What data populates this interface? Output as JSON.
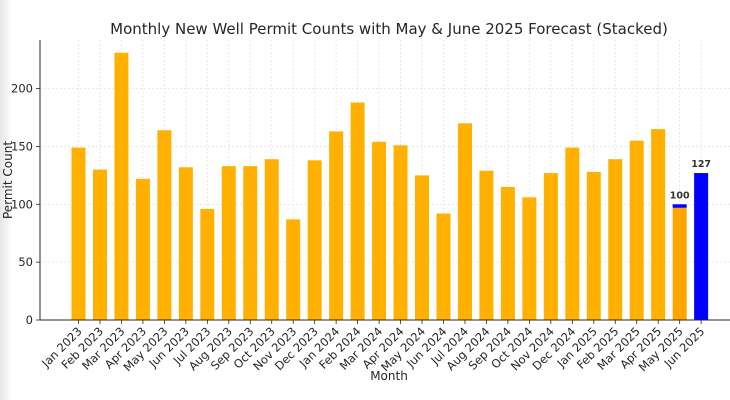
{
  "chart_data": {
    "type": "bar",
    "title": "Monthly New Well Permit Counts with May & June 2025 Forecast (Stacked)",
    "xlabel": "Month",
    "ylabel": "Permit Count",
    "ylim": [
      0,
      242
    ],
    "yticks": [
      0,
      50,
      100,
      150,
      200
    ],
    "grid": true,
    "categories": [
      "Jan 2023",
      "Feb 2023",
      "Mar 2023",
      "Apr 2023",
      "May 2023",
      "Jun 2023",
      "Jul 2023",
      "Aug 2023",
      "Sep 2023",
      "Oct 2023",
      "Nov 2023",
      "Dec 2023",
      "Jan 2024",
      "Feb 2024",
      "Mar 2024",
      "Apr 2024",
      "May 2024",
      "Jun 2024",
      "Jul 2024",
      "Aug 2024",
      "Sep 2024",
      "Oct 2024",
      "Nov 2024",
      "Dec 2024",
      "Jan 2025",
      "Feb 2025",
      "Mar 2025",
      "Apr 2025",
      "May 2025",
      "Jun 2025"
    ],
    "series": [
      {
        "color": "#FFB000",
        "values": [
          149,
          130,
          231,
          122,
          164,
          132,
          96,
          133,
          133,
          139,
          87,
          138,
          163,
          188,
          154,
          151,
          125,
          92,
          170,
          129,
          115,
          106,
          127,
          149,
          128,
          139,
          155,
          165,
          null,
          null
        ]
      },
      {
        "color": "#FFA500",
        "values": [
          null,
          null,
          null,
          null,
          null,
          null,
          null,
          null,
          null,
          null,
          null,
          null,
          null,
          null,
          null,
          null,
          null,
          null,
          null,
          null,
          null,
          null,
          null,
          null,
          null,
          null,
          null,
          null,
          97,
          null
        ]
      },
      {
        "color": "#0000FF",
        "values": [
          null,
          null,
          null,
          null,
          null,
          null,
          null,
          null,
          null,
          null,
          null,
          null,
          null,
          null,
          null,
          null,
          null,
          null,
          null,
          null,
          null,
          null,
          null,
          null,
          null,
          null,
          null,
          null,
          3,
          127
        ]
      }
    ],
    "data_labels": [
      {
        "category": "May 2025",
        "value": 100,
        "text": "100"
      },
      {
        "category": "Jun 2025",
        "value": 127,
        "text": "127"
      }
    ]
  }
}
